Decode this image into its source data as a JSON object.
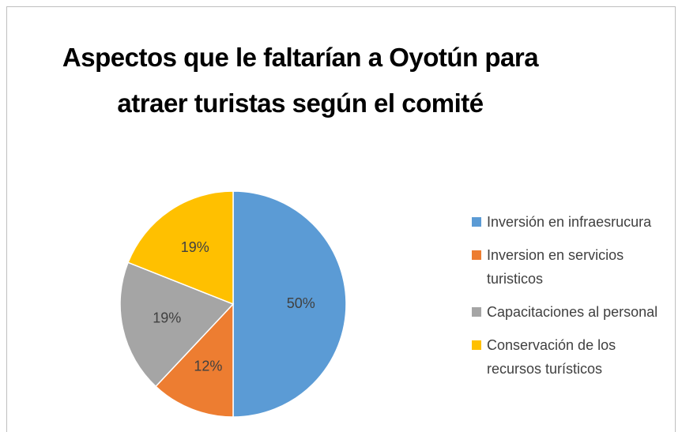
{
  "chart_data": {
    "type": "pie",
    "title": "Aspectos que le faltarían a Oyotún para atraer turistas según el comité",
    "categories": [
      "Inversión en infraesrucura",
      "Inversion en servicios turisticos",
      "Capacitaciones al personal",
      "Conservación de los recursos turísticos"
    ],
    "values": [
      50,
      12,
      19,
      19
    ],
    "value_labels": [
      "50%",
      "12%",
      "19%",
      "19%"
    ],
    "colors": [
      "#5b9bd5",
      "#ed7d31",
      "#a5a5a5",
      "#ffc000"
    ],
    "legend": "right"
  }
}
